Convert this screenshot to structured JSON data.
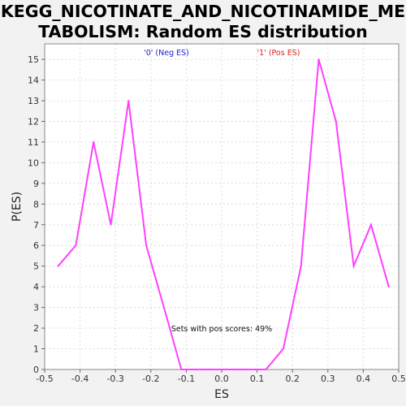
{
  "title_lines": [
    "KEGG_NICOTINATE_AND_NICOTINAMIDE_ME",
    "TABOLISM: Random ES distribution"
  ],
  "chart_data": {
    "type": "line",
    "title": "KEGG_NICOTINATE_AND_NICOTINAMIDE_METABOLISM: Random ES distribution",
    "xlabel": "ES",
    "ylabel": "P(ES)",
    "xlim": [
      -0.5,
      0.5
    ],
    "ylim": [
      0,
      15.75
    ],
    "xticks": [
      -0.5,
      -0.4,
      -0.3,
      -0.2,
      -0.1,
      0.0,
      0.1,
      0.2,
      0.3,
      0.4,
      0.5
    ],
    "xtick_labels": [
      "-0.5",
      "-0.4",
      "-0.3",
      "-0.2",
      "-0.1",
      "0.0",
      "0.1",
      "0.2",
      "0.3",
      "0.4",
      "0.5"
    ],
    "yticks": [
      0,
      1,
      2,
      3,
      4,
      5,
      6,
      7,
      8,
      9,
      10,
      11,
      12,
      13,
      14,
      15
    ],
    "ytick_labels": [
      "0",
      "1",
      "2",
      "3",
      "4",
      "5",
      "6",
      "7",
      "8",
      "9",
      "10",
      "11",
      "12",
      "13",
      "14",
      "15"
    ],
    "grid": true,
    "series": [
      {
        "color": "#ff40ff",
        "x": [
          -0.462,
          -0.412,
          -0.362,
          -0.313,
          -0.263,
          -0.213,
          -0.163,
          -0.114,
          -0.064,
          -0.014,
          0.036,
          0.085,
          0.125,
          0.174,
          0.224,
          0.274,
          0.323,
          0.373,
          0.422,
          0.472
        ],
        "y": [
          5,
          6,
          11,
          7,
          13,
          6,
          3,
          0,
          0,
          0,
          0,
          0,
          0,
          1,
          5,
          15,
          12,
          5,
          7,
          4
        ]
      }
    ],
    "labels": [
      {
        "text": "'0' (Neg ES)",
        "color": "#2020cc"
      },
      {
        "text": "'1' (Pos ES)",
        "color": "#dd2020"
      }
    ],
    "annotation": "Sets with pos scores: 49%"
  }
}
